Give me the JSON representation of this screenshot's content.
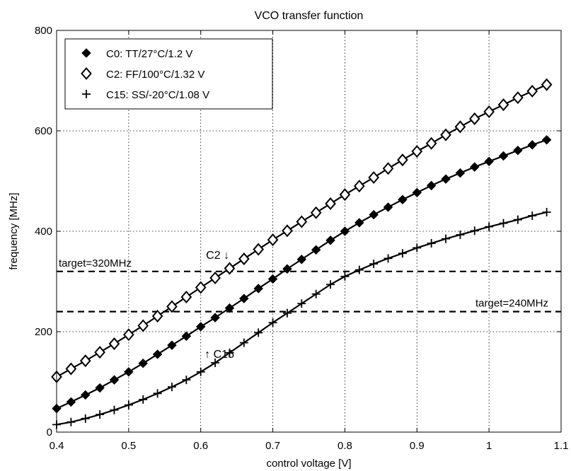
{
  "chart_data": {
    "type": "line",
    "title": "VCO transfer function",
    "xlabel": "control voltage [V]",
    "ylabel": "frequency [MHz]",
    "xlim": [
      0.4,
      1.1
    ],
    "ylim": [
      0,
      800
    ],
    "xticks": [
      0.4,
      0.5,
      0.6,
      0.7,
      0.8,
      0.9,
      1.0,
      1.1
    ],
    "xtick_labels": [
      "0.4",
      "0.5",
      "0.6",
      "0.7",
      "0.8",
      "0.9",
      "1",
      "1.1"
    ],
    "yticks": [
      0,
      200,
      400,
      600,
      800
    ],
    "ytick_labels": [
      "0",
      "200",
      "400",
      "600",
      "800"
    ],
    "grid": true,
    "grid_style": "dotted",
    "legend_position": "top-left",
    "x": [
      0.4,
      0.42,
      0.44,
      0.46,
      0.48,
      0.5,
      0.52,
      0.54,
      0.56,
      0.58,
      0.6,
      0.62,
      0.64,
      0.66,
      0.68,
      0.7,
      0.72,
      0.74,
      0.76,
      0.78,
      0.8,
      0.82,
      0.84,
      0.86,
      0.88,
      0.9,
      0.92,
      0.94,
      0.96,
      0.98,
      1.0,
      1.02,
      1.04,
      1.06,
      1.08
    ],
    "series": [
      {
        "name": "C0: TT/27°C/1.2 V",
        "marker": "filled-diamond",
        "color": "#000000",
        "values": [
          47,
          60,
          74,
          88,
          104,
          120,
          137,
          155,
          173,
          191,
          210,
          228,
          247,
          266,
          286,
          305,
          325,
          344,
          363,
          382,
          400,
          417,
          433,
          448,
          463,
          477,
          491,
          504,
          516,
          528,
          539,
          550,
          561,
          572,
          582
        ]
      },
      {
        "name": "C2: FF/100°C/1.32 V",
        "marker": "open-diamond",
        "color": "#000000",
        "values": [
          110,
          126,
          142,
          159,
          176,
          194,
          212,
          231,
          250,
          269,
          288,
          307,
          326,
          345,
          364,
          383,
          401,
          419,
          437,
          455,
          473,
          490,
          507,
          525,
          542,
          559,
          575,
          592,
          608,
          624,
          638,
          652,
          666,
          679,
          692
        ]
      },
      {
        "name": "C15: SS/-20°C/1.08 V",
        "marker": "plus",
        "color": "#000000",
        "values": [
          15,
          20,
          27,
          35,
          44,
          54,
          65,
          77,
          90,
          104,
          120,
          138,
          158,
          178,
          198,
          218,
          237,
          256,
          275,
          294,
          310,
          323,
          335,
          346,
          356,
          367,
          376,
          385,
          393,
          401,
          409,
          416,
          423,
          431,
          438
        ]
      }
    ],
    "reference_lines": [
      {
        "y": 320,
        "label": "target=320MHz",
        "style": "dashed"
      },
      {
        "y": 240,
        "label": "target=240MHz",
        "style": "dashed"
      }
    ],
    "annotations": [
      {
        "text": "C2 ↓",
        "x": 0.625,
        "y": 345
      },
      {
        "text": "↑ C15",
        "x": 0.625,
        "y": 148
      }
    ]
  }
}
